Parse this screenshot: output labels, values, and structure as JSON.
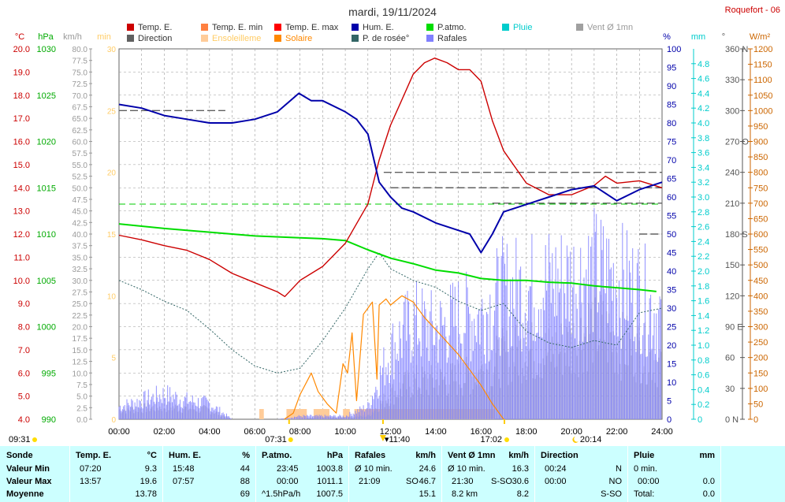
{
  "header": {
    "title": "mardi, 19/11/2024",
    "station": "Roquefort - 06"
  },
  "legend": [
    {
      "label": "Temp. E.",
      "color": "#cc0000"
    },
    {
      "label": "Temp. E. min",
      "color": "#ff8040"
    },
    {
      "label": "Temp. E. max",
      "color": "#ff0000"
    },
    {
      "label": "Hum. E.",
      "color": "#0000aa"
    },
    {
      "label": "P.atmo.",
      "color": "#00dd00"
    },
    {
      "label": "Pluie",
      "color": "#00cccc"
    },
    {
      "label": "Vent Ø 1mn",
      "color": "#a0a0a0"
    },
    {
      "label": "Direction",
      "color": "#606060"
    },
    {
      "label": "Ensoleilleme",
      "color": "#ffcc99"
    },
    {
      "label": "Solaire",
      "color": "#ff8800"
    },
    {
      "label": "P. de rosée°",
      "color": "#336666"
    },
    {
      "label": "Rafales",
      "color": "#8080ff"
    }
  ],
  "axes": {
    "temp": {
      "unit": "°C",
      "min": 4,
      "max": 20,
      "ticks": [
        "20.0",
        "19.0",
        "18.0",
        "17.0",
        "16.0",
        "15.0",
        "14.0",
        "13.0",
        "12.0",
        "11.0",
        "10.0",
        "9.0",
        "8.0",
        "7.0",
        "6.0",
        "5.0",
        "4.0"
      ],
      "color": "#cc0000"
    },
    "pressure": {
      "unit": "hPa",
      "min": 990,
      "max": 1030,
      "ticks": [
        "1030",
        "1025",
        "1020",
        "1015",
        "1010",
        "1005",
        "1000",
        "995",
        "990"
      ],
      "color": "#00aa00"
    },
    "wind": {
      "unit": "km/h",
      "min": 0,
      "max": 80,
      "ticks": [
        "80.0",
        "77.5",
        "75.0",
        "72.5",
        "70.0",
        "67.5",
        "65.0",
        "62.5",
        "60.0",
        "57.5",
        "55.0",
        "52.5",
        "50.0",
        "47.5",
        "45.0",
        "42.5",
        "40.0",
        "37.5",
        "35.0",
        "32.5",
        "30.0",
        "27.5",
        "25.0",
        "22.5",
        "20.0",
        "17.5",
        "15.0",
        "12.5",
        "10.0",
        "7.5",
        "5.0",
        "2.5",
        "0.0"
      ],
      "color": "#999999"
    },
    "sun_min": {
      "unit": "min",
      "min": 0,
      "max": 30,
      "ticks": [
        "30",
        "25",
        "20",
        "15",
        "10",
        "5",
        "0"
      ],
      "color": "#ffcc66"
    },
    "humidity": {
      "unit": "%",
      "min": 0,
      "max": 100,
      "ticks": [
        "100",
        "95",
        "90",
        "85",
        "80",
        "75",
        "70",
        "65",
        "60",
        "55",
        "50",
        "45",
        "40",
        "35",
        "30",
        "25",
        "20",
        "15",
        "10",
        "5",
        "0"
      ],
      "color": "#0000aa"
    },
    "rain": {
      "unit": "mm",
      "min": 0,
      "max": 5,
      "ticks": [
        "4.8",
        "4.6",
        "4.4",
        "4.2",
        "4.0",
        "3.8",
        "3.6",
        "3.4",
        "3.2",
        "3.0",
        "2.8",
        "2.6",
        "2.4",
        "2.2",
        "2.0",
        "1.8",
        "1.6",
        "1.4",
        "1.2",
        "1.0",
        "0.8",
        "0.6",
        "0.4",
        "0.2",
        "0"
      ],
      "color": "#00cccc"
    },
    "direction": {
      "unit": "°",
      "min": 0,
      "max": 360,
      "ticks": [
        "360 N",
        "330",
        "300",
        "270 O",
        "240",
        "210",
        "180 S",
        "150",
        "120",
        "90 E",
        "60",
        "30",
        "0 N"
      ],
      "color": "#555555"
    },
    "solar": {
      "unit": "W/m²",
      "min": 0,
      "max": 1200,
      "ticks": [
        "1200",
        "1150",
        "1100",
        "1050",
        "1000",
        "950",
        "900",
        "850",
        "800",
        "750",
        "700",
        "650",
        "600",
        "550",
        "500",
        "450",
        "400",
        "350",
        "300",
        "250",
        "200",
        "150",
        "100",
        "50",
        "0"
      ],
      "color": "#cc6600"
    },
    "time": {
      "ticks": [
        "00:00",
        "02:00",
        "04:00",
        "06:00",
        "08:00",
        "10:00",
        "12:00",
        "14:00",
        "16:00",
        "18:00",
        "20:00",
        "22:00",
        "24:00"
      ]
    }
  },
  "markers": {
    "sunrise_left": "09:31",
    "sunrise": "07:31",
    "noon": "11:40",
    "sunset": "17:02",
    "moon": "20:14"
  },
  "chart_data": {
    "type": "line",
    "x_unit": "hour of day",
    "series": [
      {
        "name": "Temp. E.",
        "axis": "temp",
        "color": "#cc0000",
        "points": [
          [
            0,
            11.95
          ],
          [
            1,
            11.75
          ],
          [
            2,
            11.5
          ],
          [
            3,
            11.3
          ],
          [
            4,
            10.9
          ],
          [
            5,
            10.3
          ],
          [
            6,
            9.9
          ],
          [
            7,
            9.5
          ],
          [
            7.33,
            9.3
          ],
          [
            8,
            10.0
          ],
          [
            9,
            10.6
          ],
          [
            10,
            11.6
          ],
          [
            11,
            13.3
          ],
          [
            11.5,
            15.2
          ],
          [
            12,
            16.7
          ],
          [
            12.5,
            17.8
          ],
          [
            13,
            18.9
          ],
          [
            13.5,
            19.4
          ],
          [
            13.95,
            19.6
          ],
          [
            14.5,
            19.4
          ],
          [
            15,
            19.1
          ],
          [
            15.5,
            19.1
          ],
          [
            16,
            18.6
          ],
          [
            16.5,
            16.9
          ],
          [
            17,
            15.6
          ],
          [
            18,
            14.2
          ],
          [
            19,
            13.7
          ],
          [
            20,
            13.7
          ],
          [
            21,
            14.1
          ],
          [
            21.5,
            14.5
          ],
          [
            22,
            14.2
          ],
          [
            23,
            14.3
          ],
          [
            24,
            14.0
          ]
        ]
      },
      {
        "name": "Hum. E.",
        "axis": "humidity",
        "color": "#0000aa",
        "points": [
          [
            0,
            85
          ],
          [
            1,
            84
          ],
          [
            2,
            82
          ],
          [
            3,
            81
          ],
          [
            4,
            80
          ],
          [
            5,
            80
          ],
          [
            6,
            81
          ],
          [
            7,
            83
          ],
          [
            7.95,
            88
          ],
          [
            8.5,
            86
          ],
          [
            9,
            86
          ],
          [
            10,
            83
          ],
          [
            10.5,
            81
          ],
          [
            11,
            77
          ],
          [
            11.5,
            64
          ],
          [
            12,
            60
          ],
          [
            12.5,
            57
          ],
          [
            13,
            56
          ],
          [
            14,
            53
          ],
          [
            15,
            51
          ],
          [
            15.5,
            50
          ],
          [
            16,
            45
          ],
          [
            16.5,
            50
          ],
          [
            17,
            56
          ],
          [
            18,
            58
          ],
          [
            19,
            60
          ],
          [
            20,
            62
          ],
          [
            21,
            63
          ],
          [
            22,
            59
          ],
          [
            23,
            62
          ],
          [
            24,
            64
          ]
        ]
      },
      {
        "name": "P.atmo.",
        "axis": "pressure",
        "color": "#00dd00",
        "points": [
          [
            0,
            1011.1
          ],
          [
            2,
            1010.6
          ],
          [
            4,
            1010.2
          ],
          [
            6,
            1009.8
          ],
          [
            8,
            1009.6
          ],
          [
            9,
            1009.5
          ],
          [
            10,
            1009.3
          ],
          [
            11,
            1008.3
          ],
          [
            12,
            1007.4
          ],
          [
            13,
            1006.8
          ],
          [
            14,
            1006.1
          ],
          [
            15,
            1005.8
          ],
          [
            16,
            1005.2
          ],
          [
            17,
            1005.0
          ],
          [
            18,
            1005.0
          ],
          [
            19,
            1004.8
          ],
          [
            20,
            1004.7
          ],
          [
            21,
            1004.4
          ],
          [
            22,
            1004.2
          ],
          [
            23,
            1004.0
          ],
          [
            23.75,
            1003.8
          ]
        ]
      },
      {
        "name": "P. de rosée°",
        "axis": "temp",
        "color": "#336666",
        "points": [
          [
            0,
            10.0
          ],
          [
            1,
            9.6
          ],
          [
            2,
            9.1
          ],
          [
            3,
            8.7
          ],
          [
            4,
            7.9
          ],
          [
            5,
            7.0
          ],
          [
            6,
            6.3
          ],
          [
            7,
            6.0
          ],
          [
            8,
            6.2
          ],
          [
            9,
            7.4
          ],
          [
            10,
            8.8
          ],
          [
            11,
            10.5
          ],
          [
            11.5,
            11.2
          ],
          [
            12,
            10.5
          ],
          [
            13,
            10.0
          ],
          [
            14,
            9.7
          ],
          [
            15,
            9.1
          ],
          [
            16,
            8.7
          ],
          [
            17,
            9.0
          ],
          [
            18,
            7.8
          ],
          [
            19,
            7.3
          ],
          [
            20,
            7.1
          ],
          [
            21,
            7.4
          ],
          [
            22,
            7.2
          ],
          [
            23,
            8.6
          ],
          [
            24,
            8.8
          ]
        ]
      },
      {
        "name": "Solaire",
        "axis": "solar",
        "color": "#ff8800",
        "points": [
          [
            7.3,
            0
          ],
          [
            7.7,
            20
          ],
          [
            8,
            80
          ],
          [
            8.5,
            150
          ],
          [
            8.8,
            90
          ],
          [
            9.2,
            50
          ],
          [
            9.6,
            20
          ],
          [
            9.9,
            180
          ],
          [
            10.1,
            150
          ],
          [
            10.3,
            280
          ],
          [
            10.5,
            60
          ],
          [
            10.8,
            340
          ],
          [
            11.0,
            360
          ],
          [
            11.2,
            380
          ],
          [
            11.4,
            130
          ],
          [
            11.5,
            370
          ],
          [
            11.8,
            390
          ],
          [
            12,
            370
          ],
          [
            12.5,
            400
          ],
          [
            13,
            380
          ],
          [
            13.5,
            330
          ],
          [
            14,
            290
          ],
          [
            14.5,
            250
          ],
          [
            15,
            210
          ],
          [
            15.5,
            160
          ],
          [
            16,
            110
          ],
          [
            16.5,
            50
          ],
          [
            17,
            0
          ]
        ]
      },
      {
        "name": "Rafales",
        "axis": "wind",
        "color": "#8080ff",
        "envelope": [
          [
            0,
            4
          ],
          [
            1,
            6
          ],
          [
            2,
            8
          ],
          [
            3,
            6
          ],
          [
            4,
            5
          ],
          [
            5,
            0
          ],
          [
            7,
            0
          ],
          [
            8,
            1
          ],
          [
            10,
            1
          ],
          [
            11,
            4
          ],
          [
            12,
            22
          ],
          [
            13,
            31
          ],
          [
            14,
            28
          ],
          [
            15,
            32
          ],
          [
            16,
            33
          ],
          [
            17,
            40
          ],
          [
            18,
            41
          ],
          [
            19,
            43
          ],
          [
            20,
            44
          ],
          [
            21,
            46.7
          ],
          [
            22,
            44
          ],
          [
            23,
            40
          ],
          [
            24,
            32
          ]
        ]
      },
      {
        "name": "Vent Ø 1mn",
        "axis": "wind",
        "color": "#a0a0a0",
        "envelope": [
          [
            0,
            3
          ],
          [
            2,
            4
          ],
          [
            4,
            3
          ],
          [
            5,
            0
          ],
          [
            7,
            0
          ],
          [
            11,
            1
          ],
          [
            12,
            8
          ],
          [
            13,
            12
          ],
          [
            14,
            12
          ],
          [
            15,
            13
          ],
          [
            16,
            15
          ],
          [
            17,
            20
          ],
          [
            18,
            22
          ],
          [
            19,
            21
          ],
          [
            20,
            24
          ],
          [
            21,
            30.6
          ],
          [
            22,
            24
          ],
          [
            23,
            22
          ],
          [
            24,
            18
          ]
        ]
      },
      {
        "name": "Direction",
        "axis": "direction",
        "color": "#606060",
        "segments": [
          [
            0,
            4.7,
            300
          ],
          [
            11.7,
            24,
            240
          ],
          [
            12,
            24,
            225
          ],
          [
            16.5,
            24,
            210
          ],
          [
            23,
            24,
            180
          ]
        ]
      },
      {
        "name": "Ensoleilleme",
        "axis": "sun_min",
        "color": "#ffcc99",
        "bars": [
          [
            6.2,
            6.4
          ],
          [
            7.4,
            8.3
          ],
          [
            8.6,
            9.3
          ],
          [
            9.9,
            10.2
          ],
          [
            10.4,
            16.6
          ]
        ]
      }
    ]
  },
  "summary": {
    "sonde": {
      "header": "Sonde",
      "rows": [
        "Valeur Min",
        "Valeur Max",
        "Moyenne"
      ]
    },
    "temp": {
      "header": "Temp. E.",
      "unit": "°C",
      "min_time": "07:20",
      "min_val": "9.3",
      "max_time": "13:57",
      "max_val": "19.6",
      "avg": "13.78"
    },
    "hum": {
      "header": "Hum. E.",
      "unit": "%",
      "min_time": "15:48",
      "min_val": "44",
      "max_time": "07:57",
      "max_val": "88",
      "avg": "69"
    },
    "press": {
      "header": "P.atmo.",
      "unit": "hPa",
      "min_time": "23:45",
      "min_val": "1003.8",
      "max_time": "00:00",
      "max_val": "1011.1",
      "avg_label": "^1.5hPa/h",
      "avg": "1007.5"
    },
    "gust": {
      "header": "Rafales",
      "unit": "km/h",
      "min_label": "Ø 10 min.",
      "min_val": "24.6",
      "max_time": "21:09",
      "max_dir": "SO",
      "max_val": "46.7",
      "avg": "15.1"
    },
    "wind": {
      "header": "Vent Ø 1mn",
      "unit": "km/h",
      "min_label": "Ø 10 min.",
      "min_val": "16.3",
      "max_time": "21:30",
      "max_dir": "S-SO",
      "max_val": "30.6",
      "avg_label": "8.2 km",
      "avg": "8.2"
    },
    "dir": {
      "header": "Direction",
      "min_time": "00:24",
      "min_val": "N",
      "max_time": "00:00",
      "max_val": "NO",
      "avg": "S-SO"
    },
    "rain": {
      "header": "Pluie",
      "unit": "mm",
      "min_label": "0 min.",
      "max_time": "00:00",
      "max_val": "0.0",
      "avg_label": "Total:",
      "avg": "0.0"
    }
  }
}
